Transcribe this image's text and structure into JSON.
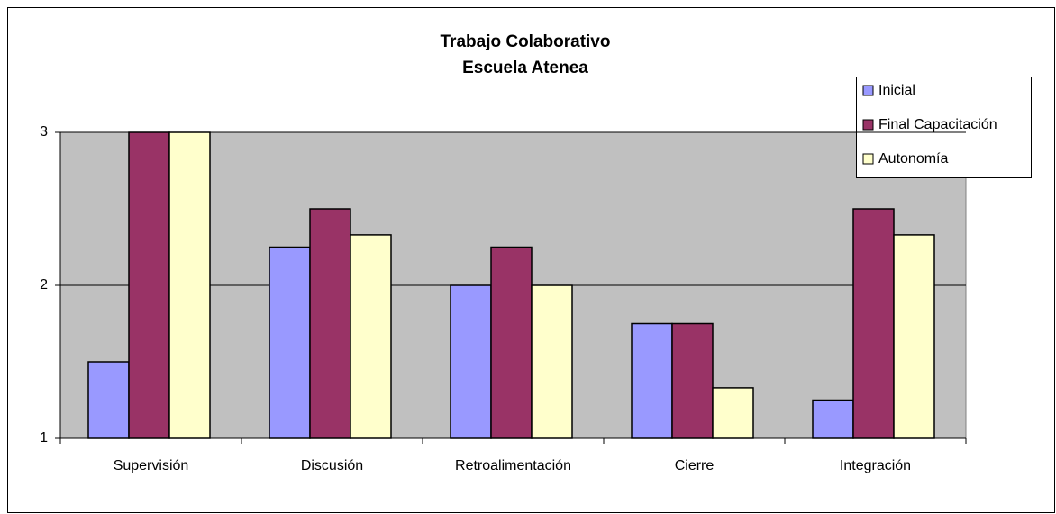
{
  "chart_data": {
    "type": "bar",
    "title": "Trabajo Colaborativo",
    "subtitle": "Escuela Atenea",
    "categories": [
      "Supervisión",
      "Discusión",
      "Retroalimentación",
      "Cierre",
      "Integración"
    ],
    "series": [
      {
        "name": "Inicial",
        "color": "#9999ff",
        "values": [
          1.5,
          2.25,
          2,
          1.75,
          1.25
        ]
      },
      {
        "name": "Final Capacitación",
        "color": "#993366",
        "values": [
          3,
          2.5,
          2.25,
          1.75,
          2.5
        ]
      },
      {
        "name": "Autonomía",
        "color": "#ffffcc",
        "values": [
          3,
          2.33,
          2,
          1.33,
          2.33
        ]
      }
    ],
    "ylim": [
      1,
      3
    ],
    "yticks": [
      1,
      2,
      3
    ],
    "grid": true,
    "legend": "right"
  }
}
